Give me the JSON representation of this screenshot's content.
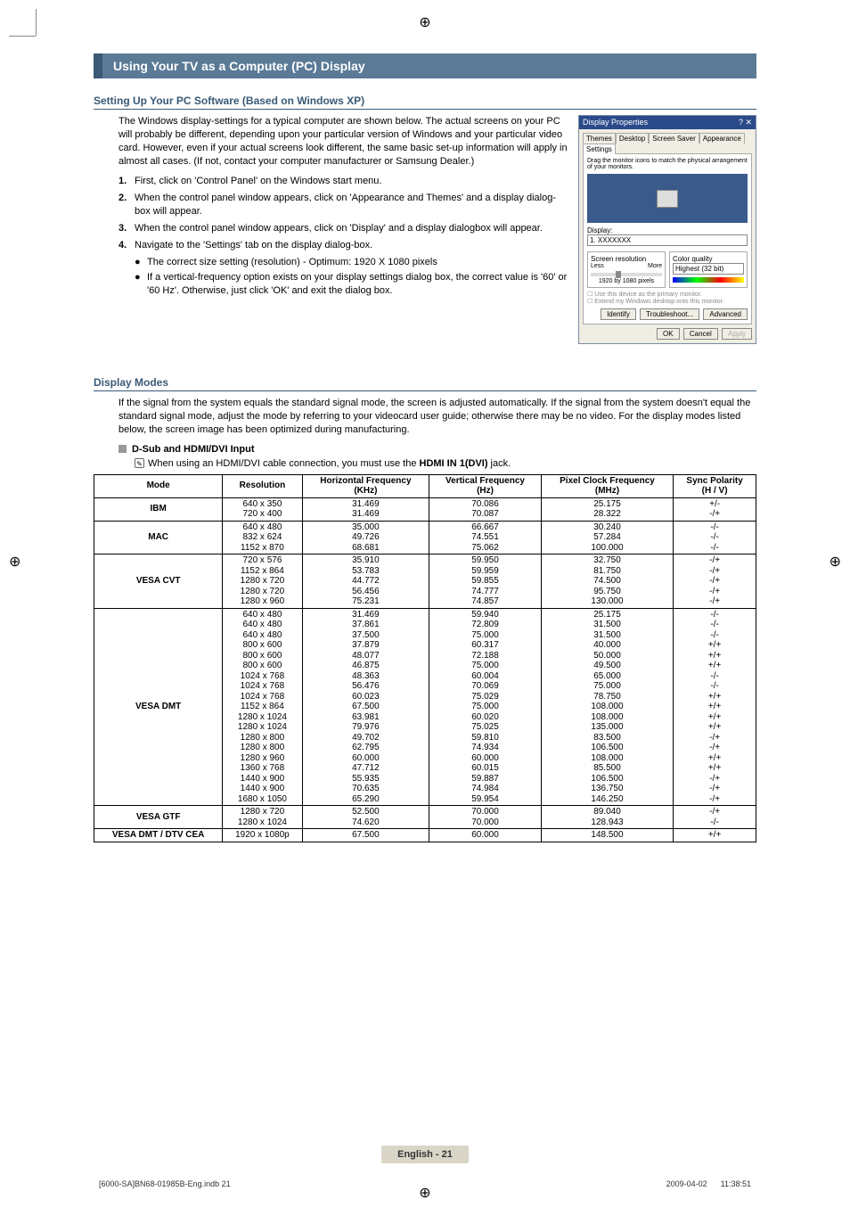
{
  "section_title": "Using Your TV as a Computer (PC) Display",
  "sub1": {
    "heading": "Setting Up Your PC Software (Based on Windows XP)",
    "intro": "The Windows display-settings for a typical computer are shown below. The actual screens on your PC will probably be different, depending upon your particular version of Windows and your particular video card. However, even if your actual screens look different, the same basic set-up information will apply in almost all cases. (If not, contact your computer manufacturer or Samsung Dealer.)",
    "steps": [
      "First, click on 'Control Panel' on the Windows start menu.",
      "When the control panel window appears, click on 'Appearance and Themes' and a display dialog-box will appear.",
      "When the control panel window appears, click on 'Display' and a display dialogbox will appear.",
      "Navigate to the 'Settings' tab on the display dialog-box."
    ],
    "bullets": [
      "The correct size setting (resolution) - Optimum: 1920 X 1080 pixels",
      "If a vertical-frequency option exists on your display settings dialog box, the correct value is '60' or '60 Hz'. Otherwise, just click 'OK' and exit the dialog box."
    ]
  },
  "dialog": {
    "title": "Display Properties",
    "tabs": [
      "Themes",
      "Desktop",
      "Screen Saver",
      "Appearance",
      "Settings"
    ],
    "drag_text": "Drag the monitor icons to match the physical arrangement of your monitors.",
    "display_label": "Display:",
    "display_value": "1. XXXXXXX",
    "res_label": "Screen resolution",
    "res_less": "Less",
    "res_more": "More",
    "res_value": "1920 by 1080 pixels",
    "quality_label": "Color quality",
    "quality_value": "Highest (32 bit)",
    "chk1": "Use this device as the primary monitor.",
    "chk2": "Extend my Windows desktop onto this monitor.",
    "btns_mid": [
      "Identify",
      "Troubleshoot...",
      "Advanced"
    ],
    "btns_bot": [
      "OK",
      "Cancel",
      "Apply"
    ]
  },
  "sub2": {
    "heading": "Display Modes",
    "intro": "If the signal from the system equals the standard signal mode, the screen is adjusted automatically. If the signal from the system doesn't equal the standard signal mode, adjust the mode by referring to your videocard user guide; otherwise there may be no video. For the display modes listed below, the screen image has been optimized during manufacturing.",
    "dsub_label": "D-Sub and HDMI/DVI Input",
    "note_prefix": "When using an HDMI/DVI cable connection, you must use the ",
    "note_bold": "HDMI IN 1(DVI)",
    "note_suffix": " jack."
  },
  "table": {
    "columns": [
      "Mode",
      "Resolution",
      "Horizontal Frequency\n(KHz)",
      "Vertical Frequency\n(Hz)",
      "Pixel Clock Frequency\n(MHz)",
      "Sync Polarity\n(H / V)"
    ],
    "rows": [
      {
        "mode": "IBM",
        "resolution": "640 x 350\n720 x 400",
        "hf": "31.469\n31.469",
        "vf": "70.086\n70.087",
        "pc": "25.175\n28.322",
        "sp": "+/-\n-/+"
      },
      {
        "mode": "MAC",
        "resolution": "640 x 480\n832 x 624\n1152 x 870",
        "hf": "35.000\n49.726\n68.681",
        "vf": "66.667\n74.551\n75.062",
        "pc": "30.240\n57.284\n100.000",
        "sp": "-/-\n-/-\n-/-"
      },
      {
        "mode": "VESA CVT",
        "resolution": "720 x 576\n1152 x 864\n1280 x 720\n1280 x 720\n1280 x 960",
        "hf": "35.910\n53.783\n44.772\n56.456\n75.231",
        "vf": "59.950\n59.959\n59.855\n74.777\n74.857",
        "pc": "32.750\n81.750\n74.500\n95.750\n130.000",
        "sp": "-/+\n-/+\n-/+\n-/+\n-/+"
      },
      {
        "mode": "VESA DMT",
        "resolution": "640 x 480\n640 x 480\n640 x 480\n800 x 600\n800 x 600\n800 x 600\n1024 x 768\n1024 x 768\n1024 x 768\n1152 x 864\n1280 x 1024\n1280 x 1024\n1280 x 800\n1280 x 800\n1280 x 960\n1360 x 768\n1440 x 900\n1440 x 900\n1680 x 1050",
        "hf": "31.469\n37.861\n37.500\n37.879\n48.077\n46.875\n48.363\n56.476\n60.023\n67.500\n63.981\n79.976\n49.702\n62.795\n60.000\n47.712\n55.935\n70.635\n65.290",
        "vf": "59.940\n72.809\n75.000\n60.317\n72.188\n75.000\n60.004\n70.069\n75.029\n75.000\n60.020\n75.025\n59.810\n74.934\n60.000\n60.015\n59.887\n74.984\n59.954",
        "pc": "25.175\n31.500\n31.500\n40.000\n50.000\n49.500\n65.000\n75.000\n78.750\n108.000\n108.000\n135.000\n83.500\n106.500\n108.000\n85.500\n106.500\n136.750\n146.250",
        "sp": "-/-\n-/-\n-/-\n+/+\n+/+\n+/+\n-/-\n-/-\n+/+\n+/+\n+/+\n+/+\n-/+\n-/+\n+/+\n+/+\n-/+\n-/+\n-/+"
      },
      {
        "mode": "VESA GTF",
        "resolution": "1280 x 720\n1280 x 1024",
        "hf": "52.500\n74.620",
        "vf": "70.000\n70.000",
        "pc": "89.040\n128.943",
        "sp": "-/+\n-/-"
      },
      {
        "mode": "VESA DMT / DTV CEA",
        "resolution": "1920 x 1080p",
        "hf": "67.500",
        "vf": "60.000",
        "pc": "148.500",
        "sp": "+/+"
      }
    ]
  },
  "footer": {
    "page_label": "English - 21",
    "doc_ref": "[6000-SA]BN68-01985B-Eng.indb   21",
    "timestamp": "2009-04-02      11:38:51"
  }
}
